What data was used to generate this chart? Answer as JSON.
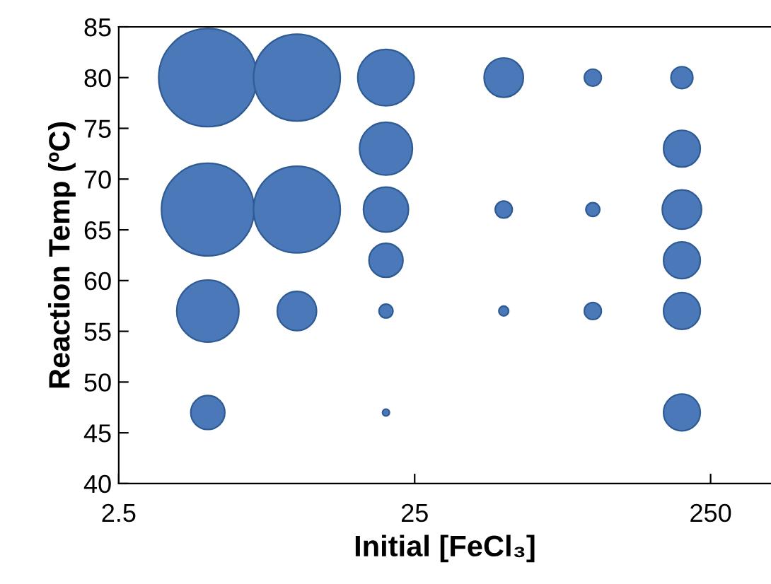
{
  "chart_data": {
    "type": "bubble",
    "xlabel": "Initial [FeCl₃]",
    "ylabel": "Reaction Temp (ºC)",
    "log": "x",
    "xlim": [
      2.5,
      400
    ],
    "xticks": [
      2.5,
      25,
      250
    ],
    "ylim": [
      40,
      85
    ],
    "yticks": [
      40,
      45,
      50,
      55,
      60,
      65,
      70,
      75,
      80,
      85
    ],
    "grid": false,
    "legend": false,
    "series": [
      {
        "color": "#4a78b8",
        "x": [
          5,
          10,
          20,
          50,
          100,
          200,
          20,
          200,
          5,
          10,
          20,
          50,
          100,
          200,
          20,
          200,
          5,
          10,
          20,
          50,
          100,
          200,
          5,
          20,
          200
        ],
        "values": [
          80,
          80,
          80,
          80,
          80,
          80,
          73,
          73,
          67,
          67,
          67,
          67,
          67,
          67,
          62,
          62,
          57,
          57,
          57,
          57,
          57,
          57,
          47,
          47,
          47
        ],
        "sizes": [
          1,
          0.78,
          0.33,
          0.16,
          0.03,
          0.05,
          0.29,
          0.14,
          0.89,
          0.78,
          0.21,
          0.03,
          0.02,
          0.16,
          0.12,
          0.14,
          0.4,
          0.16,
          0.02,
          0.01,
          0.03,
          0.14,
          0.12,
          0.005,
          0.14
        ]
      }
    ]
  }
}
